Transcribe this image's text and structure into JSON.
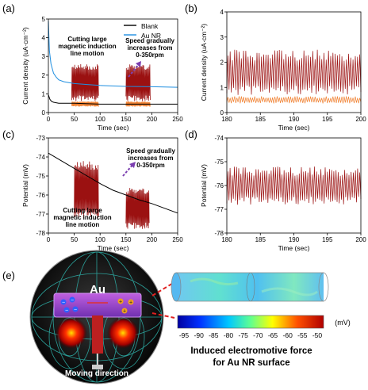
{
  "panels": [
    {
      "id": "a",
      "label": "(a)"
    },
    {
      "id": "b",
      "label": "(b)"
    },
    {
      "id": "c",
      "label": "(c)"
    },
    {
      "id": "d",
      "label": "(d)"
    },
    {
      "id": "e",
      "label": "(e)"
    }
  ],
  "annotations": {
    "a_cut": [
      "Cutting large",
      "magnetic induction",
      "line motion"
    ],
    "a_speed": [
      "Speed gradually",
      "increases from",
      "0-350rpm"
    ],
    "c_cut": [
      "Cutting large",
      "magnetic induction",
      "line motion"
    ],
    "c_speed": [
      "Speed gradually",
      "increases from",
      "0-350rpm"
    ]
  },
  "schematic": {
    "particle_label": "Au",
    "direction_label": "Moving direction",
    "colorbar_unit": "(mV)",
    "colorbar_ticks": [
      "-95",
      "-90",
      "-85",
      "-80",
      "-75",
      "-70",
      "-65",
      "-60",
      "-55",
      "-50"
    ],
    "caption": [
      "Induced electromotive force",
      "for Au NR surface"
    ]
  },
  "chart_data": [
    {
      "panel": "a",
      "type": "line",
      "xlabel": "Time (sec)",
      "ylabel": "Current density (uA·cm⁻²)",
      "xlim": [
        0,
        250
      ],
      "ylim": [
        0,
        5
      ],
      "xticks": [
        "0",
        "50",
        "100",
        "150",
        "200",
        "250"
      ],
      "yticks": [
        "0",
        "1",
        "2",
        "3",
        "4",
        "5"
      ],
      "legend": {
        "position": "top-right",
        "entries": [
          "Blank",
          "Au NR"
        ]
      },
      "series": [
        {
          "name": "Blank",
          "color": "#000000",
          "x": [
            0,
            3,
            6,
            10,
            20,
            50,
            100,
            150,
            200,
            250
          ],
          "y": [
            0.95,
            0.7,
            0.6,
            0.55,
            0.5,
            0.5,
            0.45,
            0.45,
            0.45,
            0.45
          ]
        },
        {
          "name": "Au NR",
          "color": "#1f8fe0",
          "x": [
            0,
            2,
            5,
            10,
            15,
            20,
            30,
            40,
            50,
            75,
            100,
            150,
            200,
            250
          ],
          "y": [
            4.9,
            3.3,
            2.6,
            2.1,
            1.9,
            1.75,
            1.65,
            1.6,
            1.55,
            1.5,
            1.45,
            1.4,
            1.38,
            1.35
          ]
        }
      ],
      "oscillation_regions": [
        {
          "color": "#9b1111",
          "x_range": [
            45,
            97
          ],
          "y_range": [
            0.5,
            2.6
          ]
        },
        {
          "color": "#9b1111",
          "x_range": [
            150,
            197
          ],
          "y_range": [
            0.5,
            2.6
          ]
        },
        {
          "color": "#f08030",
          "x_range": [
            45,
            97
          ],
          "y_range": [
            0.3,
            0.6
          ]
        },
        {
          "color": "#f08030",
          "x_range": [
            150,
            197
          ],
          "y_range": [
            0.3,
            0.6
          ]
        }
      ]
    },
    {
      "panel": "b",
      "type": "line",
      "xlabel": "Time (sec)",
      "ylabel": "Current density (uA·cm⁻²)",
      "xlim": [
        180,
        200
      ],
      "ylim": [
        0,
        4
      ],
      "xticks": [
        "180",
        "185",
        "190",
        "195",
        "200"
      ],
      "yticks": [
        "0",
        "1",
        "2",
        "3",
        "4"
      ],
      "series": [
        {
          "color": "#9b1111",
          "cycles": 60,
          "y_range": [
            0.6,
            2.5
          ]
        },
        {
          "color": "#f08030",
          "cycles": 60,
          "y_range": [
            0.35,
            0.65
          ]
        }
      ]
    },
    {
      "panel": "c",
      "type": "line",
      "xlabel": "Time (sec)",
      "ylabel": "Potential (mV)",
      "xlim": [
        0,
        250
      ],
      "ylim": [
        -78,
        -73
      ],
      "xticks": [
        "0",
        "50",
        "100",
        "150",
        "200",
        "250"
      ],
      "yticks": [
        "-78",
        "-77",
        "-76",
        "-75",
        "-74",
        "-73"
      ],
      "series": [
        {
          "color": "#000000",
          "x": [
            0,
            25,
            50,
            75,
            100,
            125,
            150,
            175,
            200,
            225,
            250
          ],
          "y": [
            -73.8,
            -74.2,
            -74.6,
            -75.0,
            -75.4,
            -75.75,
            -76.0,
            -76.25,
            -76.45,
            -76.7,
            -76.95
          ]
        }
      ],
      "oscillation_regions": [
        {
          "color": "#9b1111",
          "x_range": [
            50,
            97
          ],
          "y_range": [
            -77.4,
            -74.2
          ]
        },
        {
          "color": "#9b1111",
          "x_range": [
            150,
            195
          ],
          "y_range": [
            -77.9,
            -75.6
          ]
        }
      ]
    },
    {
      "panel": "d",
      "type": "line",
      "xlabel": "Time (sec)",
      "ylabel": "Potential (mV)",
      "xlim": [
        180,
        200
      ],
      "ylim": [
        -78,
        -74
      ],
      "xticks": [
        "180",
        "185",
        "190",
        "195",
        "200"
      ],
      "yticks": [
        "-78",
        "-77",
        "-76",
        "-75",
        "-74"
      ],
      "series": [
        {
          "color": "#9b1111",
          "cycles": 62,
          "y_range": [
            -76.9,
            -75.2
          ]
        }
      ]
    }
  ]
}
